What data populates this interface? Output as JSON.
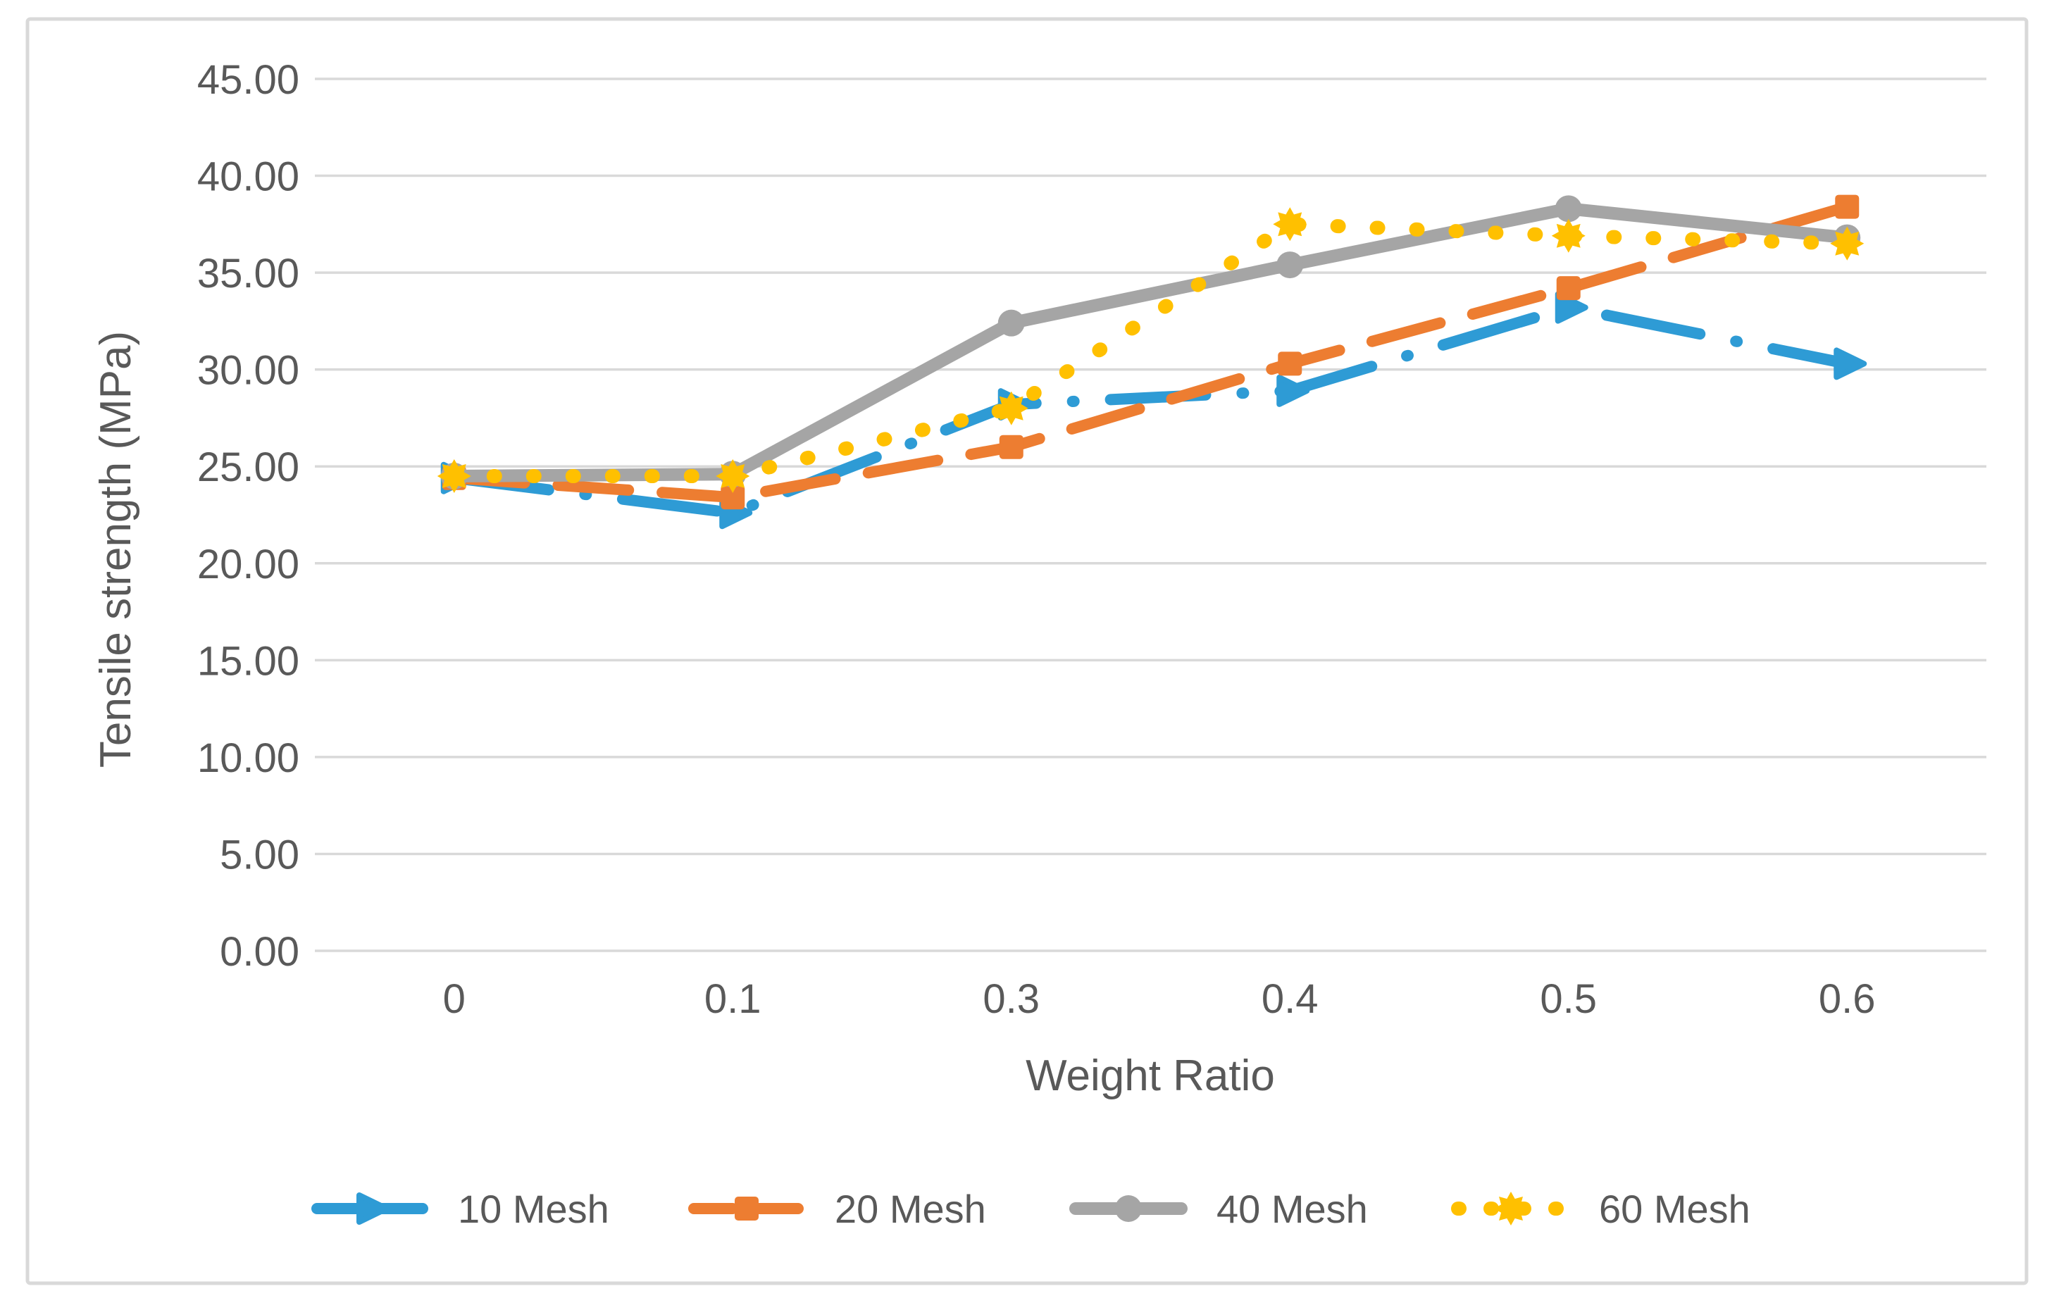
{
  "chart_data": {
    "type": "line",
    "title": "",
    "xlabel": "Weight Ratio",
    "ylabel": "Tensile strength (MPa)",
    "categories": [
      "0",
      "0.1",
      "0.3",
      "0.4",
      "0.5",
      "0.6"
    ],
    "y_tick_labels": [
      "0.00",
      "5.00",
      "10.00",
      "15.00",
      "20.00",
      "25.00",
      "30.00",
      "35.00",
      "40.00",
      "45.00"
    ],
    "ylim": [
      0,
      45
    ],
    "ystep": 5,
    "grid": "horizontal-only",
    "legend_position": "bottom-center",
    "series": [
      {
        "name": "10 Mesh",
        "color": "#2E9BD5",
        "line_style": "long-dash-dot",
        "marker": "triangle-right",
        "values": [
          24.4,
          22.6,
          28.2,
          28.9,
          33.2,
          30.3
        ]
      },
      {
        "name": "20 Mesh",
        "color": "#ED7D31",
        "line_style": "dash",
        "marker": "square",
        "values": [
          24.4,
          23.4,
          26.0,
          30.3,
          34.2,
          38.4
        ]
      },
      {
        "name": "40 Mesh",
        "color": "#A5A5A5",
        "line_style": "solid",
        "marker": "circle",
        "values": [
          24.5,
          24.6,
          32.4,
          35.4,
          38.3,
          36.8
        ]
      },
      {
        "name": "60 Mesh",
        "color": "#FFC000",
        "line_style": "dot",
        "marker": "star8",
        "values": [
          24.5,
          24.5,
          28.0,
          37.5,
          36.9,
          36.5
        ]
      }
    ],
    "colors": {
      "text": "#595959",
      "gridline": "#D9D9D9",
      "border": "#D9D9D9",
      "background": "#FFFFFF"
    }
  }
}
